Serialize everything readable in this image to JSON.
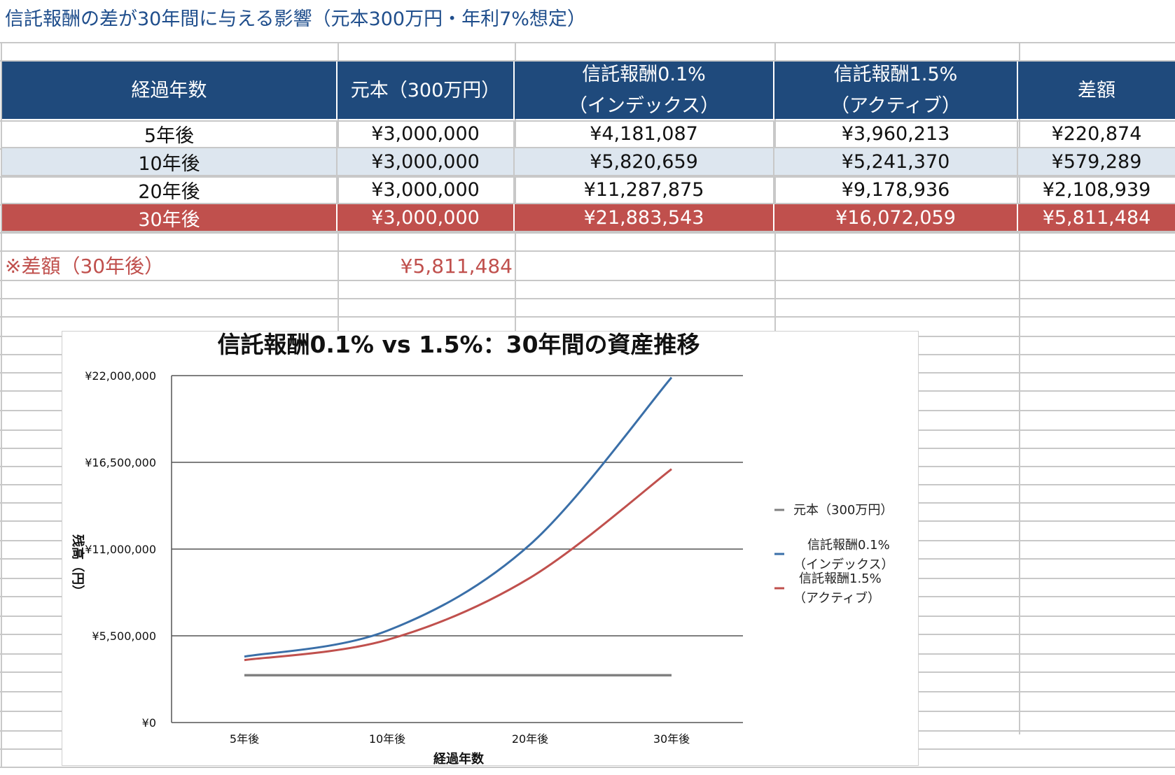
{
  "sheet": {
    "title": "信託報酬の差が30年間に与える影響（元本300万円・年利7%想定）"
  },
  "table": {
    "headers": [
      [
        "経過年数"
      ],
      [
        "元本（300万円）"
      ],
      [
        "信託報酬0.1%",
        "（インデックス）"
      ],
      [
        "信託報酬1.5%",
        "（アクティブ）"
      ],
      [
        "差額"
      ]
    ],
    "rows": [
      [
        "5年後",
        "¥3,000,000",
        "¥4,181,087",
        "¥3,960,213",
        "¥220,874"
      ],
      [
        "10年後",
        "¥3,000,000",
        "¥5,820,659",
        "¥5,241,370",
        "¥579,289"
      ],
      [
        "20年後",
        "¥3,000,000",
        "¥11,287,875",
        "¥9,178,936",
        "¥2,108,939"
      ],
      [
        "30年後",
        "¥3,000,000",
        "¥21,883,543",
        "¥16,072,059",
        "¥5,811,484"
      ]
    ]
  },
  "note": {
    "label": "※差額（30年後）",
    "value": "¥5,811,484"
  },
  "colors": {
    "header_bg": "#1f4a7c",
    "alt_row_bg": "#dde6ef",
    "highlight_row_bg": "#c0504d",
    "series_principal": "#808080",
    "series_index": "#3a6fa8",
    "series_active": "#c0504d"
  },
  "chart_data": {
    "type": "line",
    "title": "信託報酬0.1% vs 1.5%：30年間の資産推移",
    "xlabel": "経過年数",
    "ylabel": "残高（円）",
    "categories": [
      "5年後",
      "10年後",
      "20年後",
      "30年後"
    ],
    "ylim": [
      0,
      22000000
    ],
    "yticks": [
      "¥0",
      "¥5,500,000",
      "¥11,000,000",
      "¥16,500,000",
      "¥22,000,000"
    ],
    "grid": true,
    "legend_position": "right",
    "series": [
      {
        "name": "元本（300万円）",
        "legend_lines": [
          "元本（300万円）"
        ],
        "values": [
          3000000,
          3000000,
          3000000,
          3000000
        ]
      },
      {
        "name": "信託報酬0.1%（インデックス）",
        "legend_lines": [
          "信託報酬0.1%",
          "（インデックス）"
        ],
        "values": [
          4181087,
          5820659,
          11287875,
          21883543
        ]
      },
      {
        "name": "信託報酬1.5%（アクティブ）",
        "legend_lines": [
          "信託報酬1.5%",
          "（アクティブ）"
        ],
        "values": [
          3960213,
          5241370,
          9178936,
          16072059
        ]
      }
    ]
  }
}
